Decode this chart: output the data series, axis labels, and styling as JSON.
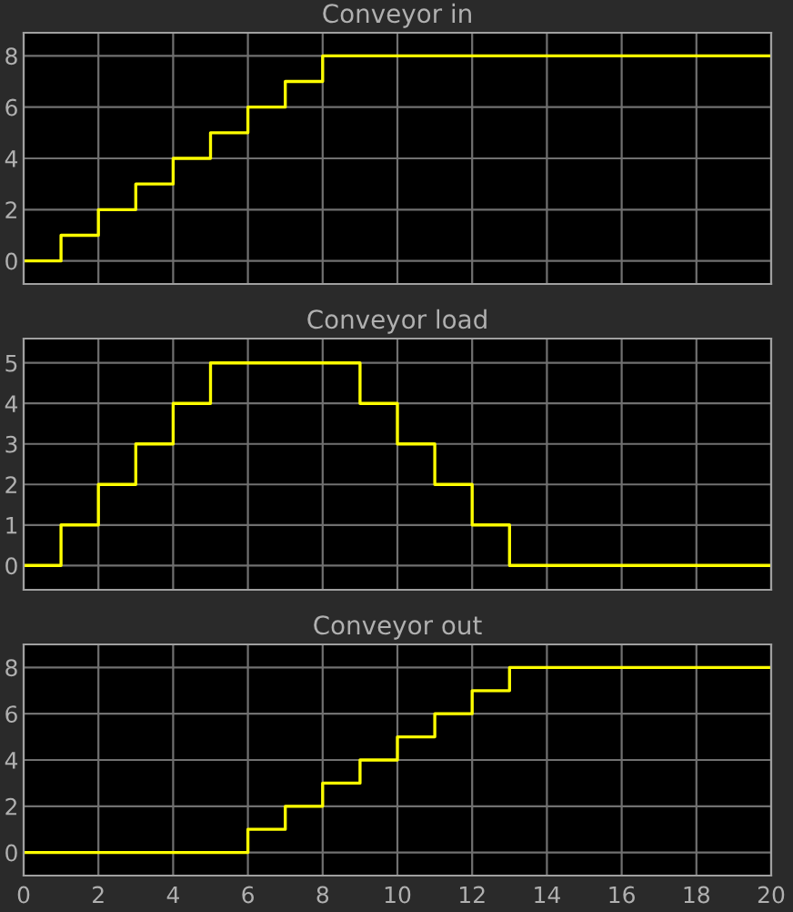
{
  "chart_data": [
    {
      "type": "step",
      "title": "Conveyor in",
      "x": [
        0,
        1,
        2,
        3,
        4,
        5,
        6,
        7,
        8,
        20
      ],
      "series": [
        {
          "color": "#ffff00",
          "values": [
            0,
            1,
            2,
            3,
            4,
            5,
            6,
            7,
            8,
            8
          ]
        }
      ],
      "xlim": [
        0,
        20
      ],
      "xticks": [
        0,
        2,
        4,
        6,
        8,
        10,
        12,
        14,
        16,
        18,
        20
      ],
      "ylim": [
        -0.9,
        8.9
      ],
      "yticks": [
        0,
        2,
        4,
        6,
        8
      ],
      "grid": true,
      "tick_labels": "y"
    },
    {
      "type": "step",
      "title": "Conveyor load",
      "x": [
        0,
        1,
        2,
        3,
        4,
        5,
        9,
        10,
        11,
        12,
        13,
        20
      ],
      "series": [
        {
          "color": "#ffff00",
          "values": [
            0,
            1,
            2,
            3,
            4,
            5,
            4,
            3,
            2,
            1,
            0,
            0
          ]
        }
      ],
      "xlim": [
        0,
        20
      ],
      "xticks": [
        0,
        2,
        4,
        6,
        8,
        10,
        12,
        14,
        16,
        18,
        20
      ],
      "ylim": [
        -0.6,
        5.6
      ],
      "yticks": [
        0,
        1,
        2,
        3,
        4,
        5
      ],
      "grid": true,
      "tick_labels": "y"
    },
    {
      "type": "step",
      "title": "Conveyor out",
      "x": [
        0,
        6,
        7,
        8,
        9,
        10,
        11,
        12,
        13,
        20
      ],
      "series": [
        {
          "color": "#ffff00",
          "values": [
            0,
            1,
            2,
            3,
            4,
            5,
            6,
            7,
            8,
            8
          ]
        }
      ],
      "xlim": [
        0,
        20
      ],
      "xticks": [
        0,
        2,
        4,
        6,
        8,
        10,
        12,
        14,
        16,
        18,
        20
      ],
      "ylim": [
        -1,
        9
      ],
      "yticks": [
        0,
        2,
        4,
        6,
        8
      ],
      "grid": true
    }
  ]
}
